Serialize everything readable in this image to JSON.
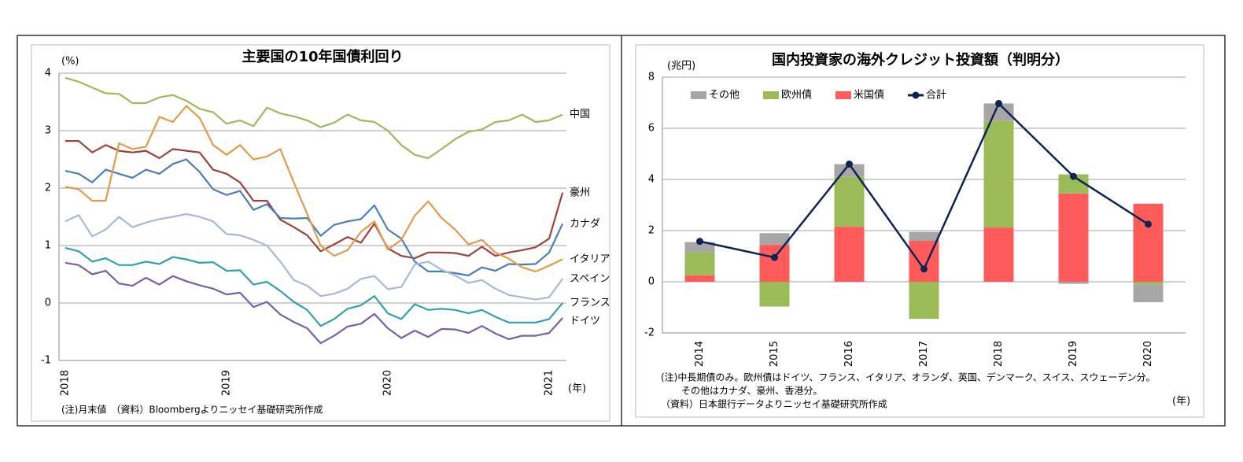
{
  "chart_data": [
    {
      "type": "line",
      "title": "主要国の10年国債利回り",
      "y_unit": "(%)",
      "x_unit": "(年)",
      "note": "(注)月末値　（資料）Bloombergよりニッセイ基礎研究所作成",
      "categories": [
        "2018",
        null,
        null,
        null,
        null,
        null,
        null,
        null,
        null,
        null,
        null,
        null,
        "2019",
        null,
        null,
        null,
        null,
        null,
        null,
        null,
        null,
        null,
        null,
        null,
        "2020",
        null,
        null,
        null,
        null,
        null,
        null,
        null,
        null,
        null,
        null,
        null,
        "2021",
        null
      ],
      "ylim": [
        -1,
        4
      ],
      "yticks": [
        -1,
        0,
        1,
        2,
        3,
        4
      ],
      "grid": true,
      "series": [
        {
          "name": "中国",
          "color": "#9bbb59",
          "values": [
            3.92,
            3.85,
            3.75,
            3.65,
            3.64,
            3.48,
            3.48,
            3.58,
            3.62,
            3.52,
            3.38,
            3.32,
            3.12,
            3.18,
            3.08,
            3.4,
            3.3,
            3.25,
            3.18,
            3.06,
            3.14,
            3.28,
            3.18,
            3.15,
            3.0,
            2.75,
            2.58,
            2.52,
            2.68,
            2.85,
            2.98,
            3.02,
            3.15,
            3.18,
            3.28,
            3.15,
            3.18,
            3.28
          ]
        },
        {
          "name": "豪州",
          "color": "#a0403d",
          "values": [
            2.82,
            2.82,
            2.62,
            2.75,
            2.65,
            2.62,
            2.65,
            2.52,
            2.68,
            2.65,
            2.62,
            2.32,
            2.25,
            2.1,
            1.78,
            1.78,
            1.45,
            1.32,
            1.18,
            0.9,
            1.02,
            1.15,
            1.05,
            1.38,
            0.95,
            0.82,
            0.78,
            0.88,
            0.88,
            0.87,
            0.82,
            0.98,
            0.82,
            0.88,
            0.92,
            0.97,
            1.12,
            1.92
          ]
        },
        {
          "name": "カナダ",
          "color": "#4a7ebb",
          "values": [
            2.3,
            2.25,
            2.1,
            2.32,
            2.25,
            2.18,
            2.32,
            2.25,
            2.42,
            2.5,
            2.28,
            1.98,
            1.88,
            1.95,
            1.62,
            1.72,
            1.48,
            1.47,
            1.48,
            1.17,
            1.36,
            1.42,
            1.46,
            1.7,
            1.28,
            1.12,
            0.72,
            0.55,
            0.55,
            0.52,
            0.48,
            0.62,
            0.56,
            0.68,
            0.67,
            0.68,
            0.88,
            1.38
          ]
        },
        {
          "name": "イタリア",
          "color": "#e39b4b",
          "values": [
            2.02,
            1.98,
            1.78,
            1.78,
            2.78,
            2.68,
            2.72,
            3.24,
            3.15,
            3.43,
            3.22,
            2.75,
            2.58,
            2.75,
            2.5,
            2.55,
            2.68,
            2.1,
            1.55,
            1.0,
            0.82,
            0.92,
            1.24,
            1.42,
            0.93,
            1.1,
            1.52,
            1.77,
            1.48,
            1.28,
            1.02,
            1.1,
            0.88,
            0.77,
            0.62,
            0.55,
            0.65,
            0.76
          ]
        },
        {
          "name": "スペイン",
          "color": "#a6b9d9",
          "values": [
            1.42,
            1.53,
            1.16,
            1.28,
            1.5,
            1.32,
            1.4,
            1.46,
            1.5,
            1.55,
            1.5,
            1.42,
            1.2,
            1.18,
            1.1,
            1.0,
            0.72,
            0.4,
            0.3,
            0.12,
            0.16,
            0.25,
            0.42,
            0.47,
            0.24,
            0.28,
            0.67,
            0.72,
            0.58,
            0.48,
            0.35,
            0.4,
            0.25,
            0.14,
            0.1,
            0.06,
            0.1,
            0.42
          ]
        },
        {
          "name": "フランス",
          "color": "#31a0b0",
          "values": [
            0.96,
            0.9,
            0.72,
            0.78,
            0.66,
            0.66,
            0.72,
            0.68,
            0.8,
            0.76,
            0.7,
            0.71,
            0.56,
            0.57,
            0.32,
            0.37,
            0.21,
            0.02,
            -0.12,
            -0.4,
            -0.28,
            -0.1,
            -0.04,
            0.12,
            -0.18,
            -0.28,
            -0.02,
            -0.12,
            -0.1,
            -0.12,
            -0.18,
            -0.12,
            -0.24,
            -0.34,
            -0.34,
            -0.34,
            -0.28,
            0.0
          ]
        },
        {
          "name": "ドイツ",
          "color": "#7b5ea7",
          "values": [
            0.7,
            0.66,
            0.5,
            0.56,
            0.34,
            0.3,
            0.44,
            0.32,
            0.47,
            0.38,
            0.31,
            0.25,
            0.15,
            0.18,
            -0.07,
            0.02,
            -0.2,
            -0.33,
            -0.44,
            -0.7,
            -0.57,
            -0.41,
            -0.36,
            -0.19,
            -0.44,
            -0.61,
            -0.48,
            -0.59,
            -0.45,
            -0.46,
            -0.52,
            -0.4,
            -0.53,
            -0.63,
            -0.57,
            -0.57,
            -0.52,
            -0.26
          ]
        }
      ]
    },
    {
      "type": "bar",
      "stacked": true,
      "title": "国内投資家の海外クレジット投資額（判明分）",
      "y_unit": "(兆円)",
      "x_unit": "(年)",
      "notes": [
        "(注)中長期債のみ。欧州債はドイツ、フランス、イタリア、オランダ、英国、デンマーク、スイス、スウェーデン分。",
        "その他はカナダ、豪州、香港分。",
        "（資料）日本銀行データよりニッセイ基礎研究所作成"
      ],
      "categories": [
        "2014",
        "2015",
        "2016",
        "2017",
        "2018",
        "2019",
        "2020"
      ],
      "ylim": [
        -2,
        8
      ],
      "yticks": [
        -2,
        0,
        2,
        4,
        6,
        8
      ],
      "grid": true,
      "legend": "top-left",
      "series": [
        {
          "name": "その他",
          "color": "#a6a6a6",
          "values": [
            0.4,
            0.45,
            0.5,
            0.35,
            0.67,
            -0.08,
            -0.7
          ]
        },
        {
          "name": "欧州債",
          "color": "#9bbb59",
          "values": [
            0.9,
            -0.97,
            1.95,
            -1.45,
            4.18,
            0.75,
            -0.1
          ]
        },
        {
          "name": "米国債",
          "color": "#ff5b5b",
          "values": [
            0.25,
            1.45,
            2.15,
            1.6,
            2.12,
            3.45,
            3.05
          ]
        },
        {
          "name": "合計",
          "type": "line",
          "color": "#0d2455",
          "values": [
            1.58,
            0.95,
            4.6,
            0.5,
            6.97,
            4.12,
            2.25
          ]
        }
      ]
    }
  ]
}
